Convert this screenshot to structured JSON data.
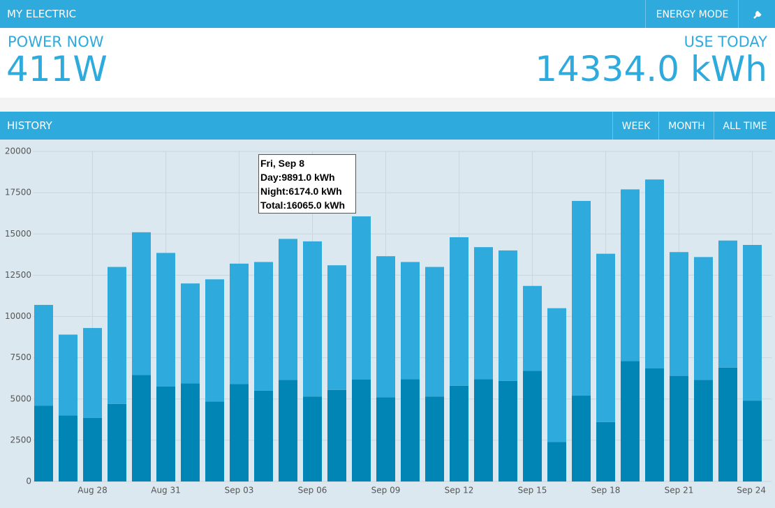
{
  "header": {
    "title": "MY ELECTRIC",
    "buttons": [
      "ENERGY MODE"
    ]
  },
  "stats": {
    "power_label": "POWER NOW",
    "power_value": "411W",
    "use_label": "USE TODAY",
    "use_value": "14334.0 kWh"
  },
  "history": {
    "title": "HISTORY",
    "buttons": [
      "WEEK",
      "MONTH",
      "ALL TIME"
    ]
  },
  "tooltip": {
    "title": "Fri, Sep 8",
    "lines": [
      "Day:9891.0 kWh",
      "Night:6174.0 kWh",
      "Total:16065.0 kWh"
    ]
  },
  "chart_data": {
    "type": "stacked_bar",
    "categories": [
      null,
      null,
      "Aug 28",
      null,
      null,
      "Aug 31",
      null,
      null,
      "Sep 03",
      null,
      null,
      "Sep 06",
      null,
      null,
      "Sep 09",
      null,
      null,
      "Sep 12",
      null,
      null,
      "Sep 15",
      null,
      null,
      "Sep 18",
      null,
      null,
      "Sep 21",
      null,
      null,
      "Sep 24"
    ],
    "series": [
      {
        "color": "#0085b4",
        "values": [
          4600,
          4000,
          3850,
          4700,
          6450,
          5750,
          5950,
          4850,
          5900,
          5500,
          6150,
          5150,
          5550,
          6174,
          5100,
          6200,
          5150,
          5800,
          6200,
          6100,
          6700,
          2400,
          5200,
          3600,
          7300,
          6850,
          6400,
          6150,
          6900,
          4900
        ]
      },
      {
        "color": "#2eaadc",
        "values": [
          6100,
          4900,
          5450,
          8300,
          8650,
          8100,
          6050,
          7400,
          7300,
          7800,
          8550,
          9400,
          7550,
          9891,
          8550,
          7100,
          7850,
          9000,
          8000,
          7900,
          5150,
          8100,
          11800,
          10200,
          10400,
          11450,
          7500,
          7450,
          7700,
          9434
        ]
      }
    ],
    "ylim": [
      0,
      20000
    ],
    "yticks": [
      0,
      2500,
      5000,
      7500,
      10000,
      12500,
      15000,
      17500,
      20000
    ],
    "grid": true
  }
}
